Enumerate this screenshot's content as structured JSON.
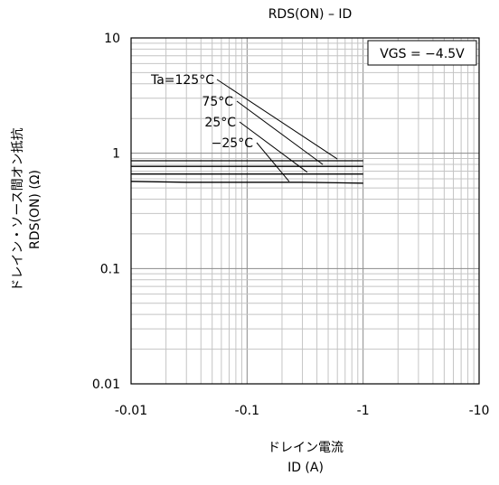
{
  "chart_data": {
    "type": "line",
    "title": "RDS(ON) – ID",
    "xlabel": "ドレイン電流",
    "xlabel_sub": "ID (A)",
    "ylabel": "ドレイン・ソース間オン抵抗",
    "ylabel_sub": "RDS(ON) (Ω)",
    "x_scale": "log",
    "y_scale": "log",
    "xlim": [
      -0.01,
      -10
    ],
    "ylim": [
      0.01,
      10
    ],
    "x_ticks": [
      "-0.01",
      "-0.1",
      "-1",
      "-10"
    ],
    "y_ticks": [
      "10",
      "1",
      "0.1",
      "0.01"
    ],
    "grid": true,
    "condition_label": "VGS = −4.5V",
    "series": [
      {
        "name": "Ta=125°C",
        "x": [
          -0.01,
          -0.03,
          -0.1,
          -0.3,
          -1
        ],
        "y": [
          0.86,
          0.86,
          0.86,
          0.86,
          0.86
        ]
      },
      {
        "name": "75°C",
        "x": [
          -0.01,
          -0.03,
          -0.1,
          -0.3,
          -1
        ],
        "y": [
          0.77,
          0.77,
          0.77,
          0.77,
          0.77
        ]
      },
      {
        "name": "25°C",
        "x": [
          -0.01,
          -0.03,
          -0.1,
          -0.3,
          -1
        ],
        "y": [
          0.66,
          0.66,
          0.66,
          0.66,
          0.66
        ]
      },
      {
        "name": "−25°C",
        "x": [
          -0.01,
          -0.03,
          -0.1,
          -0.3,
          -1
        ],
        "y": [
          0.57,
          0.56,
          0.56,
          0.56,
          0.55
        ]
      }
    ]
  }
}
